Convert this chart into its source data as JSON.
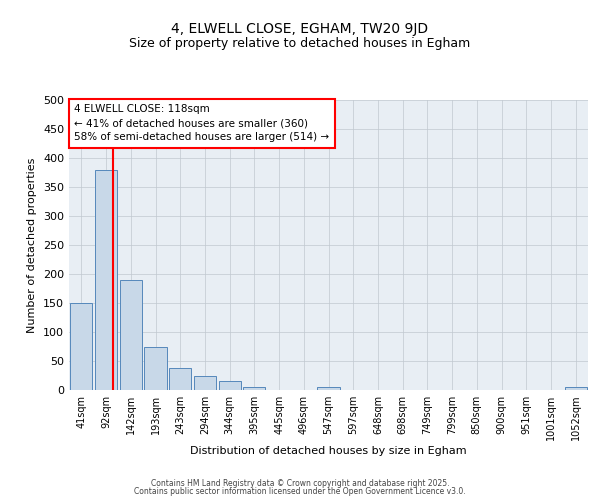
{
  "title": "4, ELWELL CLOSE, EGHAM, TW20 9JD",
  "subtitle": "Size of property relative to detached houses in Egham",
  "xlabel": "Distribution of detached houses by size in Egham",
  "ylabel": "Number of detached properties",
  "bar_color": "#c8d8e8",
  "bar_edge_color": "#5588bb",
  "categories": [
    "41sqm",
    "92sqm",
    "142sqm",
    "193sqm",
    "243sqm",
    "294sqm",
    "344sqm",
    "395sqm",
    "445sqm",
    "496sqm",
    "547sqm",
    "597sqm",
    "648sqm",
    "698sqm",
    "749sqm",
    "799sqm",
    "850sqm",
    "900sqm",
    "951sqm",
    "1001sqm",
    "1052sqm"
  ],
  "values": [
    150,
    380,
    190,
    75,
    38,
    25,
    15,
    6,
    0,
    0,
    5,
    0,
    0,
    0,
    0,
    0,
    0,
    0,
    0,
    0,
    5
  ],
  "ylim": [
    0,
    500
  ],
  "yticks": [
    0,
    50,
    100,
    150,
    200,
    250,
    300,
    350,
    400,
    450,
    500
  ],
  "red_line_x": 1.27,
  "annotation_text": "4 ELWELL CLOSE: 118sqm\n← 41% of detached houses are smaller (360)\n58% of semi-detached houses are larger (514) →",
  "footer_line1": "Contains HM Land Registry data © Crown copyright and database right 2025.",
  "footer_line2": "Contains public sector information licensed under the Open Government Licence v3.0.",
  "background_color": "#e8eef4",
  "grid_color": "#c0c8d0",
  "title_fontsize": 10,
  "subtitle_fontsize": 9
}
